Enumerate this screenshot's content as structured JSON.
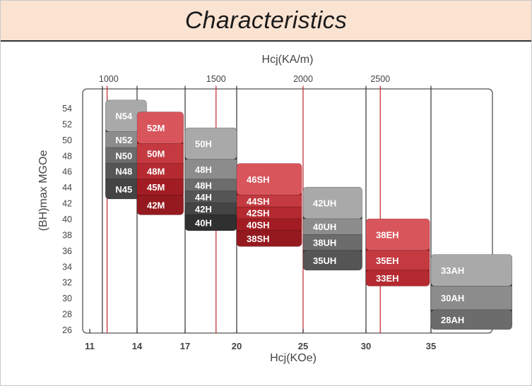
{
  "page": {
    "title": "Characteristics"
  },
  "chart_data": {
    "type": "bar",
    "title": "Characteristics",
    "xlabel": "Hcj(KOe)",
    "x2label": "Hcj(KA/m)",
    "ylabel": "(BH)max MGOe",
    "xlim": [
      10.8,
      38
    ],
    "ylim": [
      25.5,
      56
    ],
    "x_ticks": [
      {
        "label": "11",
        "value": 11
      },
      {
        "label": "14",
        "value": 14
      },
      {
        "label": "17",
        "value": 17
      },
      {
        "label": "20",
        "value": 20
      },
      {
        "label": "25",
        "value": 25
      },
      {
        "label": "30",
        "value": 30
      },
      {
        "label": "35",
        "value": 35
      }
    ],
    "x2_ticks": [
      {
        "label": "1000",
        "value": 12.2
      },
      {
        "label": "1500",
        "value": 18.8
      },
      {
        "label": "2000",
        "value": 25.0
      },
      {
        "label": "2500",
        "value": 31.1
      }
    ],
    "y_ticks": [
      26,
      28,
      30,
      32,
      34,
      36,
      38,
      40,
      42,
      44,
      46,
      48,
      50,
      52,
      54
    ],
    "vertical_lines": [
      {
        "value": 11.8,
        "color": "#333333"
      },
      {
        "value": 12.1,
        "color": "#c0262d"
      },
      {
        "value": 14,
        "color": "#333333"
      },
      {
        "value": 17,
        "color": "#333333"
      },
      {
        "value": 18.8,
        "color": "#c0262d"
      },
      {
        "value": 20,
        "color": "#333333"
      },
      {
        "value": 25,
        "color": "#c0262d"
      },
      {
        "value": 30,
        "color": "#333333"
      },
      {
        "value": 31.1,
        "color": "#c0262d"
      },
      {
        "value": 35,
        "color": "#333333"
      }
    ],
    "colors": {
      "gray_light": "#a9a9a9",
      "gray_mid": "#6c6c6c",
      "gray_dark": "#303030",
      "red_light": "#d9555c",
      "red_mid": "#b52a30",
      "red_dark": "#8a1116",
      "label": "#ffffff",
      "axis": "#444444"
    },
    "series": [
      {
        "name": "N",
        "family": "gray",
        "hcj_min": 12,
        "hcj_max": 14.6,
        "grades": [
          {
            "grade": "N54",
            "bh_min": 51.0,
            "bh_max": 55.0
          },
          {
            "grade": "N52",
            "bh_min": 49.0,
            "bh_max": 51.0
          },
          {
            "grade": "N50",
            "bh_min": 47.0,
            "bh_max": 49.0
          },
          {
            "grade": "N48",
            "bh_min": 45.0,
            "bh_max": 47.0
          },
          {
            "grade": "N45",
            "bh_min": 42.5,
            "bh_max": 45.0
          }
        ]
      },
      {
        "name": "M",
        "family": "red",
        "hcj_min": 14,
        "hcj_max": 16.9,
        "grades": [
          {
            "grade": "52M",
            "bh_min": 49.5,
            "bh_max": 53.5
          },
          {
            "grade": "50M",
            "bh_min": 47.0,
            "bh_max": 49.5
          },
          {
            "grade": "48M",
            "bh_min": 45.0,
            "bh_max": 47.0
          },
          {
            "grade": "45M",
            "bh_min": 43.0,
            "bh_max": 45.0
          },
          {
            "grade": "42M",
            "bh_min": 40.5,
            "bh_max": 43.0
          }
        ]
      },
      {
        "name": "H",
        "family": "gray",
        "hcj_min": 17,
        "hcj_max": 20,
        "grades": [
          {
            "grade": "50H",
            "bh_min": 47.5,
            "bh_max": 51.5
          },
          {
            "grade": "48H",
            "bh_min": 45.0,
            "bh_max": 47.5
          },
          {
            "grade": "48H",
            "bh_min": 43.5,
            "bh_max": 45.0
          },
          {
            "grade": "44H",
            "bh_min": 42.0,
            "bh_max": 43.5
          },
          {
            "grade": "42H",
            "bh_min": 40.5,
            "bh_max": 42.0
          },
          {
            "grade": "40H",
            "bh_min": 38.5,
            "bh_max": 40.5
          }
        ]
      },
      {
        "name": "SH",
        "family": "red",
        "hcj_min": 20,
        "hcj_max": 24.9,
        "grades": [
          {
            "grade": "46SH",
            "bh_min": 43.0,
            "bh_max": 47.0
          },
          {
            "grade": "44SH",
            "bh_min": 41.5,
            "bh_max": 43.0
          },
          {
            "grade": "42SH",
            "bh_min": 40.0,
            "bh_max": 41.5
          },
          {
            "grade": "40SH",
            "bh_min": 38.5,
            "bh_max": 40.0
          },
          {
            "grade": "38SH",
            "bh_min": 36.5,
            "bh_max": 38.5
          }
        ]
      },
      {
        "name": "UH",
        "family": "gray",
        "hcj_min": 25,
        "hcj_max": 29.7,
        "grades": [
          {
            "grade": "42UH",
            "bh_min": 40.0,
            "bh_max": 44.0
          },
          {
            "grade": "40UH",
            "bh_min": 38.0,
            "bh_max": 40.0
          },
          {
            "grade": "38UH",
            "bh_min": 36.0,
            "bh_max": 38.0
          },
          {
            "grade": "35UH",
            "bh_min": 33.5,
            "bh_max": 36.0
          }
        ]
      },
      {
        "name": "EH",
        "family": "red",
        "hcj_min": 30,
        "hcj_max": 34.9,
        "grades": [
          {
            "grade": "38EH",
            "bh_min": 36.0,
            "bh_max": 40.0
          },
          {
            "grade": "35EH",
            "bh_min": 33.5,
            "bh_max": 36.0
          },
          {
            "grade": "33EH",
            "bh_min": 31.5,
            "bh_max": 33.5
          }
        ]
      },
      {
        "name": "AH",
        "family": "gray",
        "hcj_min": 35,
        "hcj_max": 39.2,
        "grades": [
          {
            "grade": "33AH",
            "bh_min": 31.5,
            "bh_max": 35.5
          },
          {
            "grade": "30AH",
            "bh_min": 28.5,
            "bh_max": 31.5
          },
          {
            "grade": "28AH",
            "bh_min": 26.0,
            "bh_max": 28.5
          }
        ]
      }
    ]
  }
}
